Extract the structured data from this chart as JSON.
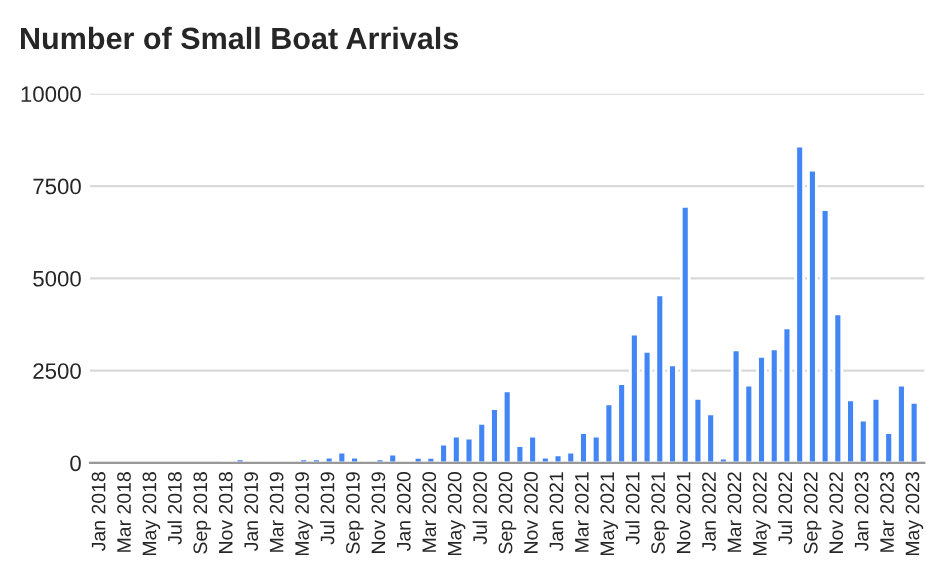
{
  "chart_data": {
    "type": "bar",
    "title": "Number of Small Boat Arrivals",
    "categories": [
      "Jan 2018",
      null,
      "Mar 2018",
      null,
      "May 2018",
      null,
      "Jul 2018",
      null,
      "Sep 2018",
      null,
      "Nov 2018",
      null,
      "Jan 2019",
      null,
      "Mar 2019",
      null,
      "May 2019",
      null,
      "Jul 2019",
      null,
      "Sep 2019",
      null,
      "Nov 2019",
      null,
      "Jan 2020",
      null,
      "Mar 2020",
      null,
      "May 2020",
      null,
      "Jul 2020",
      null,
      "Sep 2020",
      null,
      "Nov 2020",
      null,
      "Jan 2021",
      null,
      "Mar 2021",
      null,
      "May 2021",
      null,
      "Jul 2021",
      null,
      "Sep 2021",
      null,
      "Nov 2021",
      null,
      "Jan 2022",
      null,
      "Mar 2022",
      null,
      "May 2022",
      null,
      "Jul 2022",
      null,
      "Sep 2022",
      null,
      "Nov 2022",
      null,
      "Jan 2023",
      null,
      "Mar 2023",
      null,
      "May 2023"
    ],
    "values": [
      null,
      null,
      null,
      null,
      null,
      null,
      null,
      null,
      null,
      null,
      70,
      110,
      40,
      60,
      40,
      40,
      110,
      110,
      160,
      290,
      160,
      20,
      110,
      240,
      70,
      150,
      150,
      510,
      730,
      670,
      1070,
      1470,
      1950,
      470,
      730,
      160,
      220,
      290,
      820,
      730,
      1600,
      2150,
      3490,
      3020,
      4550,
      2660,
      6950,
      1750,
      1330,
      130,
      3060,
      2110,
      2890,
      3090,
      3660,
      8580,
      7930,
      6860,
      4040,
      1710,
      1160,
      1750,
      820,
      2110,
      1640
    ],
    "color": "#4285f4",
    "ylim": [
      0,
      10000
    ],
    "yticks": [
      0,
      2500,
      5000,
      7500,
      10000
    ],
    "grid": "y"
  }
}
